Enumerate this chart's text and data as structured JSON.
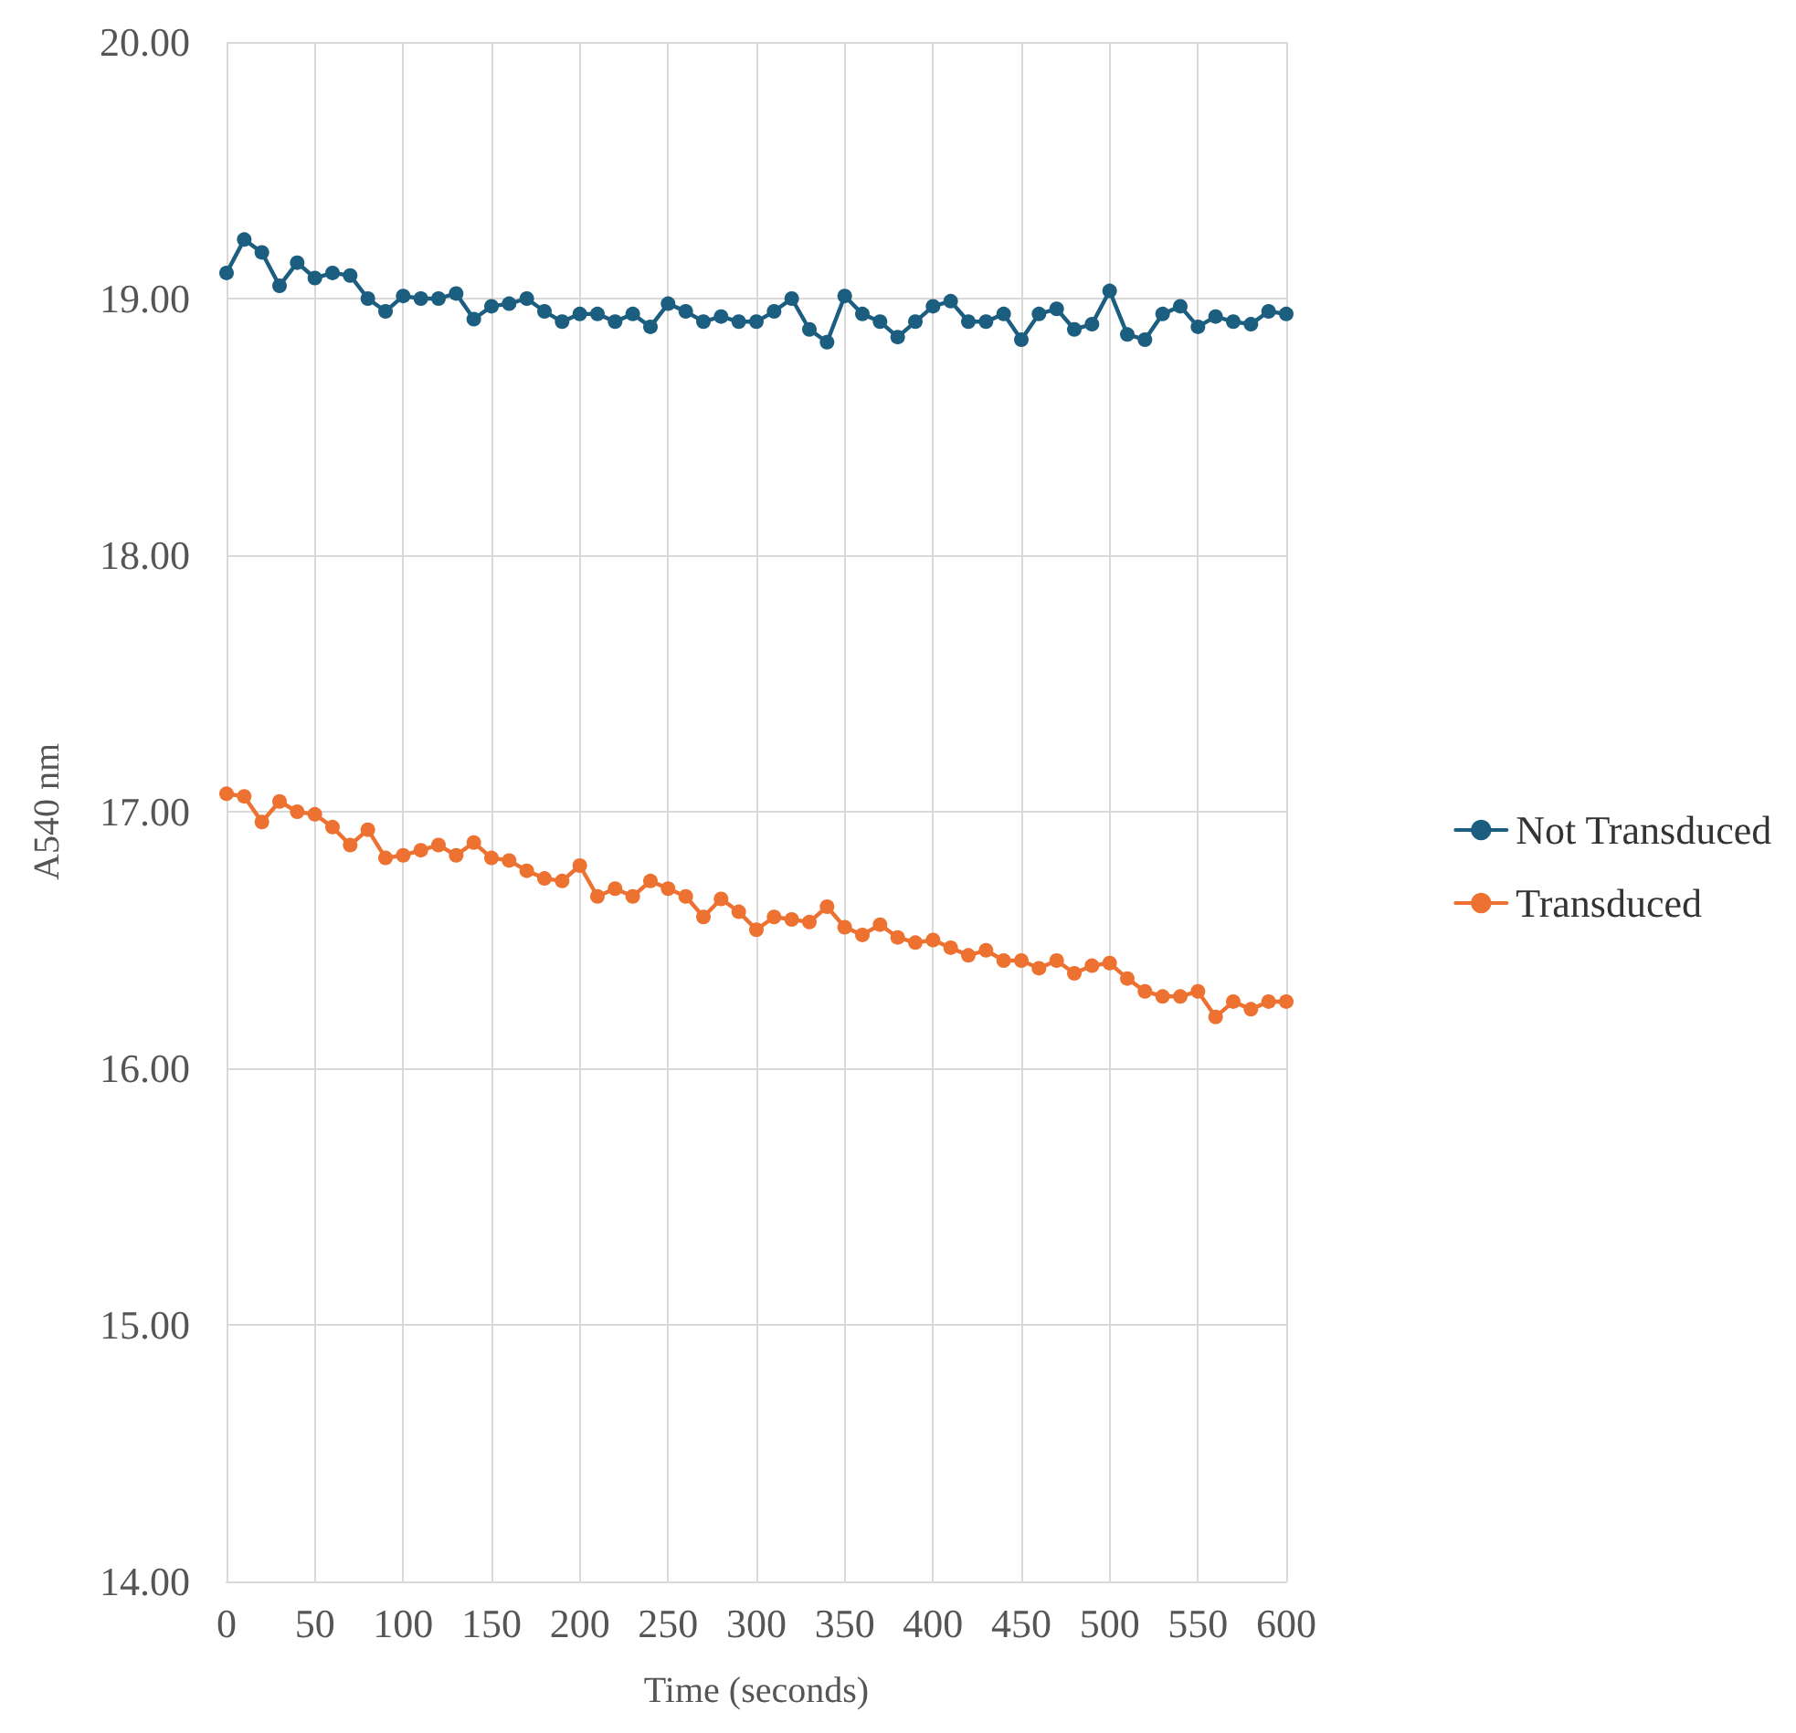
{
  "chart_data": {
    "type": "line",
    "xlabel": "Time (seconds)",
    "ylabel": "A540 nm",
    "x": [
      0,
      10,
      20,
      30,
      40,
      50,
      60,
      70,
      80,
      90,
      100,
      110,
      120,
      130,
      140,
      150,
      160,
      170,
      180,
      190,
      200,
      210,
      220,
      230,
      240,
      250,
      260,
      270,
      280,
      290,
      300,
      310,
      320,
      330,
      340,
      350,
      360,
      370,
      380,
      390,
      400,
      410,
      420,
      430,
      440,
      450,
      460,
      470,
      480,
      490,
      500,
      510,
      520,
      530,
      540,
      550,
      560,
      570,
      580,
      590,
      600
    ],
    "series": [
      {
        "name": "Not Transduced",
        "color": "#1b5e80",
        "values": [
          19.1,
          19.23,
          19.18,
          19.05,
          19.14,
          19.08,
          19.1,
          19.09,
          19.0,
          18.95,
          19.01,
          19.0,
          19.0,
          19.02,
          18.92,
          18.97,
          18.98,
          19.0,
          18.95,
          18.91,
          18.94,
          18.94,
          18.91,
          18.94,
          18.89,
          18.98,
          18.95,
          18.91,
          18.93,
          18.91,
          18.91,
          18.95,
          19.0,
          18.88,
          18.83,
          19.01,
          18.94,
          18.91,
          18.85,
          18.91,
          18.97,
          18.99,
          18.91,
          18.91,
          18.94,
          18.84,
          18.94,
          18.96,
          18.88,
          18.9,
          19.03,
          18.86,
          18.84,
          18.94,
          18.97,
          18.89,
          18.93,
          18.91,
          18.9,
          18.95,
          18.94
        ]
      },
      {
        "name": "Transduced",
        "color": "#ed7231",
        "values": [
          17.07,
          17.06,
          16.96,
          17.04,
          17.0,
          16.99,
          16.94,
          16.87,
          16.93,
          16.82,
          16.83,
          16.85,
          16.87,
          16.83,
          16.88,
          16.82,
          16.81,
          16.77,
          16.74,
          16.73,
          16.79,
          16.67,
          16.7,
          16.67,
          16.73,
          16.7,
          16.67,
          16.59,
          16.66,
          16.61,
          16.54,
          16.59,
          16.58,
          16.57,
          16.63,
          16.55,
          16.52,
          16.56,
          16.51,
          16.49,
          16.5,
          16.47,
          16.44,
          16.46,
          16.42,
          16.42,
          16.39,
          16.42,
          16.37,
          16.4,
          16.41,
          16.35,
          16.3,
          16.28,
          16.28,
          16.3,
          16.2,
          16.26,
          16.23,
          16.26,
          16.26
        ]
      }
    ],
    "xlim": [
      0,
      600
    ],
    "xticks": [
      0,
      50,
      100,
      150,
      200,
      250,
      300,
      350,
      400,
      450,
      500,
      550,
      600
    ],
    "ylim": [
      14,
      20
    ],
    "yticks": [
      {
        "value": 14,
        "label": "14.00"
      },
      {
        "value": 15,
        "label": "15.00"
      },
      {
        "value": 16,
        "label": "16.00"
      },
      {
        "value": 17,
        "label": "17.00"
      },
      {
        "value": 18,
        "label": "18.00"
      },
      {
        "value": 19,
        "label": "19.00"
      },
      {
        "value": 20,
        "label": "20.00"
      }
    ],
    "grid": true,
    "legend": "right",
    "marker": "circle",
    "line_style": "solid"
  }
}
